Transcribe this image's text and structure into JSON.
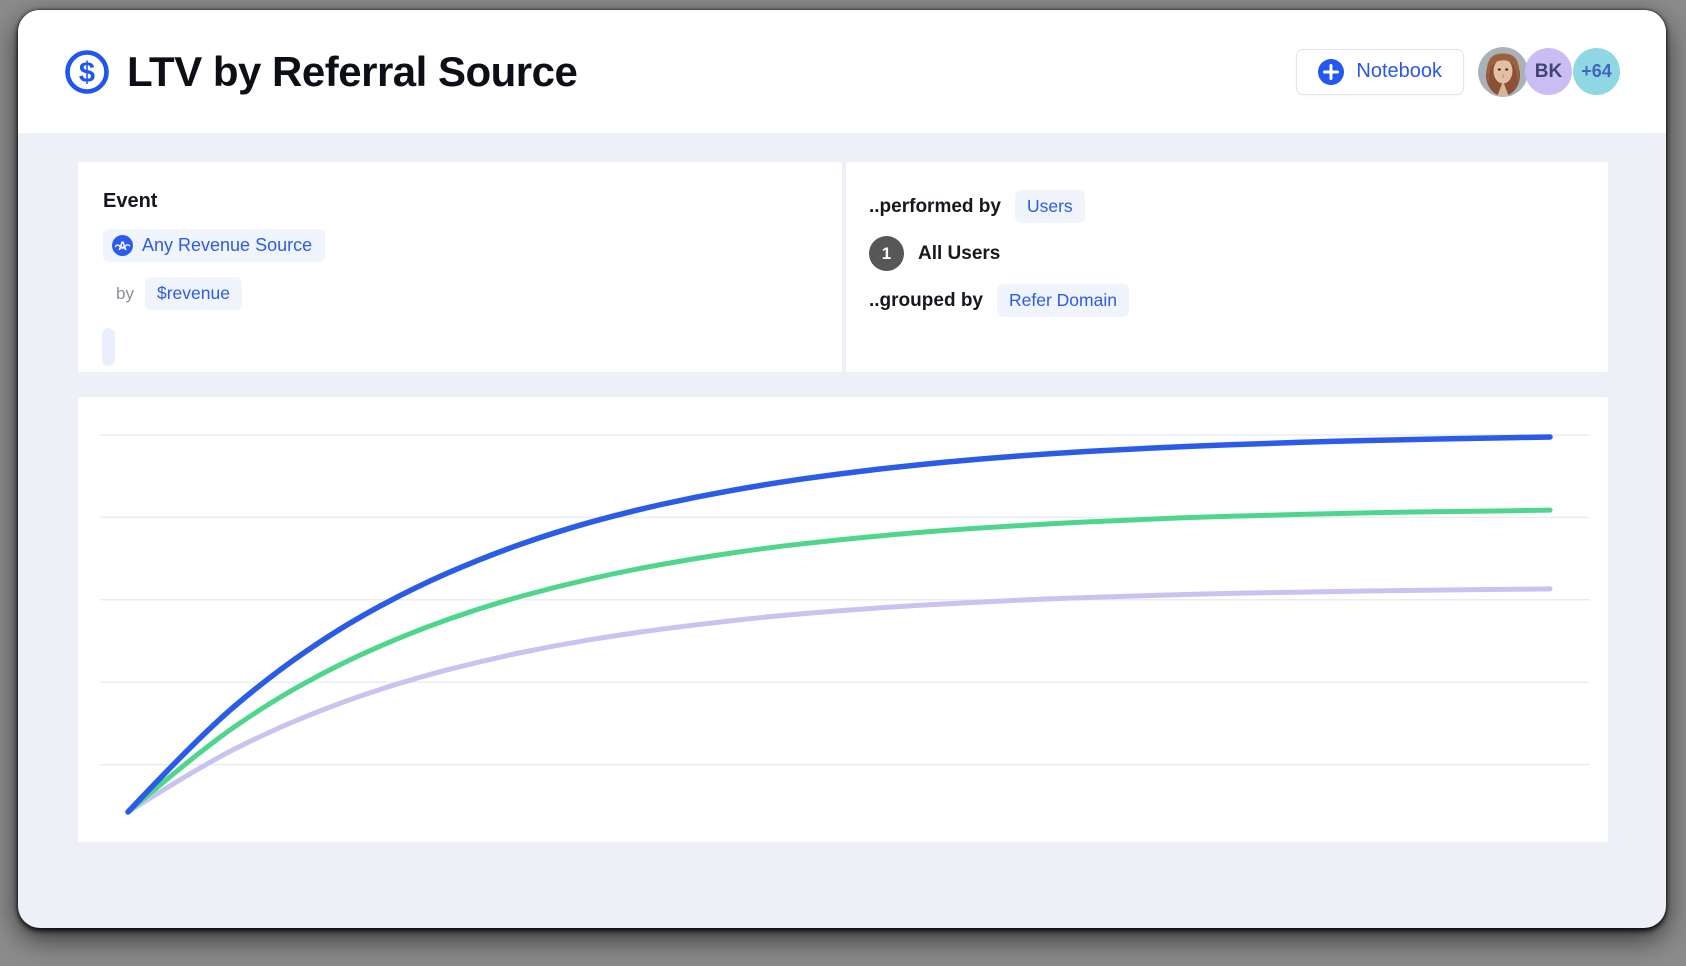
{
  "header": {
    "title": "LTV by Referral Source",
    "notebook_button_label": "Notebook",
    "avatars": {
      "initials": "BK",
      "overflow_count": "+64"
    }
  },
  "query": {
    "event_panel": {
      "label": "Event",
      "event_chip_label": "Any Revenue Source",
      "by_label": "by",
      "property_chip_label": "$revenue"
    },
    "breakdown_panel": {
      "performed_by_label": "..performed by",
      "performed_by_chip_label": "Users",
      "step_number": "1",
      "step_label": "All Users",
      "grouped_by_label": "..grouped by",
      "grouped_by_chip_label": "Refer Domain"
    }
  },
  "colors": {
    "accent_blue": "#2857ee",
    "chip_background": "#eff4fd",
    "content_background": "#edf1f7",
    "panel_background": "#ffffff",
    "step_badge_gray": "#575757",
    "avatar_bk_background": "#c9bdf4",
    "avatar_overflow_background": "#8fd7e2",
    "gridline": "#e9edf2"
  },
  "chart_data": {
    "type": "line",
    "title": "LTV by Referral Source",
    "xlabel": "",
    "ylabel": "",
    "axis_tick_labels_visible": false,
    "legend": "none",
    "grid": "horizontal",
    "gridline_count": 5,
    "ylim": [
      0,
      1.1
    ],
    "x_relative": [
      0,
      0.05,
      0.1,
      0.15,
      0.2,
      0.25,
      0.3,
      0.35,
      0.4,
      0.45,
      0.5,
      0.55,
      0.6,
      0.65,
      0.7,
      0.75,
      0.8,
      0.85,
      0.9,
      0.95,
      1
    ],
    "series": [
      {
        "name": "series-blue",
        "color": "#2a5ce8",
        "stroke_width": 5.5,
        "values": [
          0,
          0.202,
          0.363,
          0.493,
          0.596,
          0.679,
          0.746,
          0.799,
          0.841,
          0.875,
          0.902,
          0.924,
          0.942,
          0.956,
          0.967,
          0.976,
          0.983,
          0.989,
          0.993,
          0.997,
          1.0
        ]
      },
      {
        "name": "series-green",
        "color": "#4fd68d",
        "stroke_width": 5,
        "values": [
          0,
          0.162,
          0.293,
          0.397,
          0.48,
          0.547,
          0.6,
          0.643,
          0.677,
          0.705,
          0.726,
          0.744,
          0.758,
          0.769,
          0.778,
          0.786,
          0.791,
          0.796,
          0.8,
          0.802,
          0.805
        ]
      },
      {
        "name": "series-purple",
        "color": "#c8c4f0",
        "stroke_width": 5,
        "values": [
          0,
          0.12,
          0.216,
          0.293,
          0.355,
          0.404,
          0.444,
          0.475,
          0.5,
          0.521,
          0.537,
          0.55,
          0.56,
          0.569,
          0.575,
          0.581,
          0.585,
          0.588,
          0.591,
          0.593,
          0.595
        ]
      }
    ]
  }
}
